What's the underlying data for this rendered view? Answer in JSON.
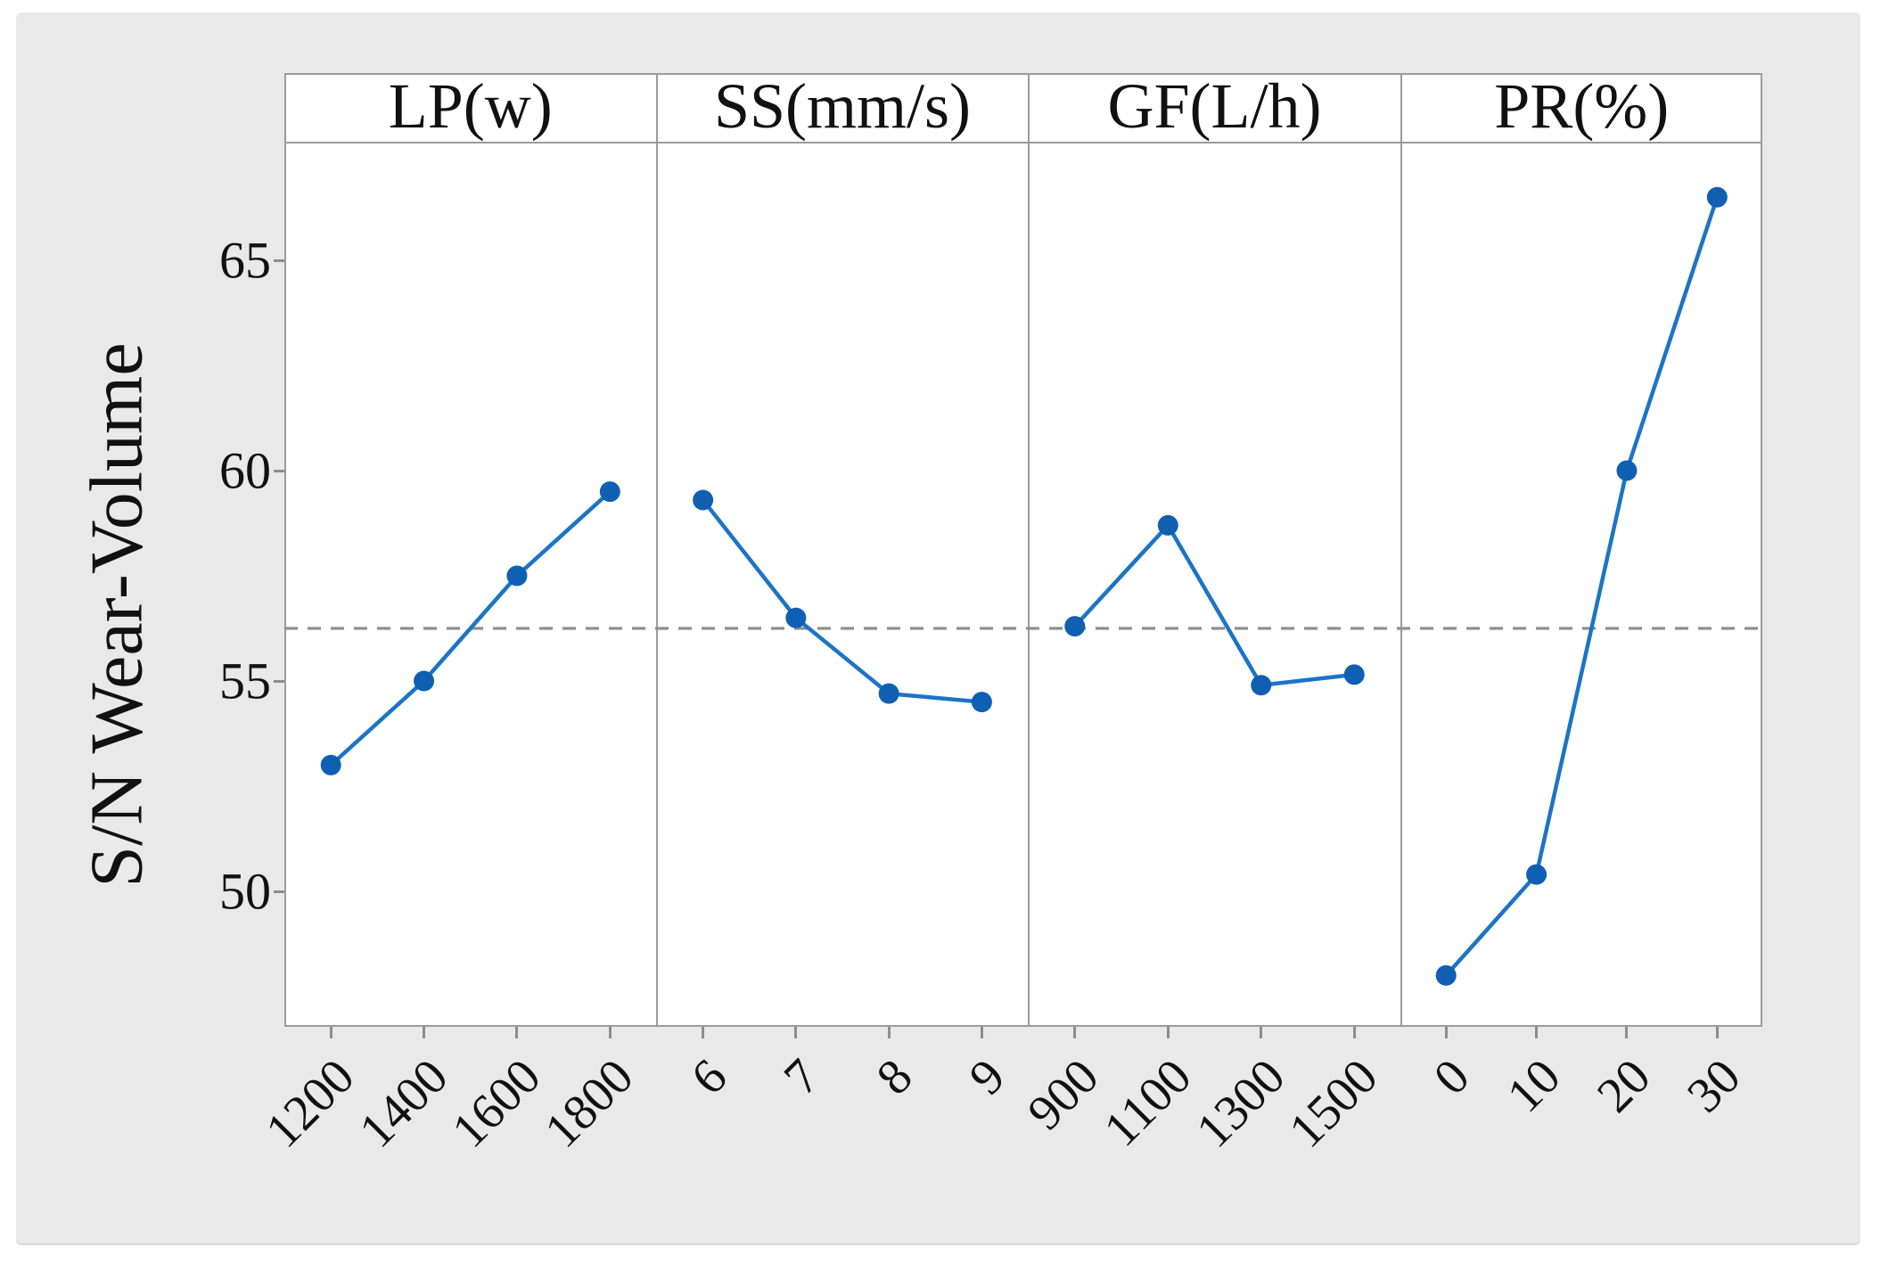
{
  "chart_data": {
    "type": "line",
    "title": "",
    "ylabel": "S/N Wear-Volume",
    "ylim": [
      46.8,
      67.8
    ],
    "yticks": [
      50,
      55,
      60,
      65
    ],
    "grid": false,
    "legend": "none",
    "mean_reference_line": 56.25,
    "panels": [
      {
        "label": "LP(w)",
        "categories": [
          "1200",
          "1400",
          "1600",
          "1800"
        ],
        "values": [
          53.0,
          55.0,
          57.5,
          59.5
        ]
      },
      {
        "label": "SS(mm/s)",
        "categories": [
          "6",
          "7",
          "8",
          "9"
        ],
        "values": [
          59.3,
          56.5,
          54.7,
          54.5
        ]
      },
      {
        "label": "GF(L/h)",
        "categories": [
          "900",
          "1100",
          "1300",
          "1500"
        ],
        "values": [
          56.3,
          58.7,
          54.9,
          55.15
        ]
      },
      {
        "label": "PR(%)",
        "categories": [
          "0",
          "10",
          "20",
          "30"
        ],
        "values": [
          48.0,
          50.4,
          60.0,
          66.5
        ]
      }
    ],
    "colors": {
      "series_line": "#1c74c6",
      "marker_fill": "#0f5fb3",
      "mean_line": "#8f8f8f",
      "panel_border": "#9b9b9b",
      "text": "#111111",
      "canvas_bg": "#e9e9e9",
      "plot_bg": "#ffffff"
    }
  }
}
